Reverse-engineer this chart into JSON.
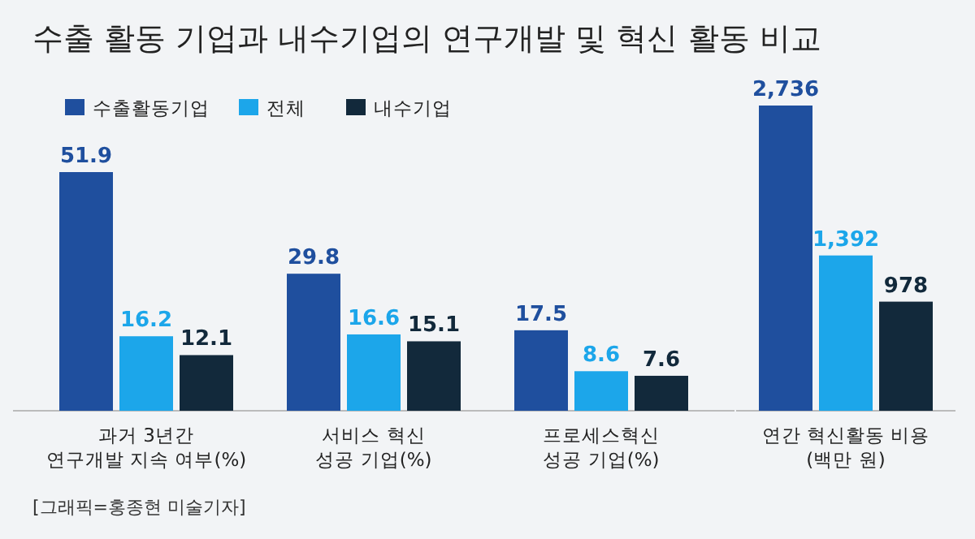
{
  "chart_data": [
    {
      "type": "bar",
      "title": "수출 활동 기업과 내수기업의 연구개발 및 혁신 활동 비교",
      "categories": [
        "과거 3년간\n연구개발 지속 여부(%)",
        "서비스 혁신\n성공 기업(%)",
        "프로세스혁신\n성공 기업(%)"
      ],
      "series": [
        {
          "name": "수출활동기업",
          "color": "#1f4f9e",
          "values": [
            51.9,
            29.8,
            17.5
          ]
        },
        {
          "name": "전체",
          "color": "#1ca6ea",
          "values": [
            16.2,
            16.6,
            8.6
          ]
        },
        {
          "name": "내수기업",
          "color": "#12293b",
          "values": [
            12.1,
            15.1,
            7.6
          ]
        }
      ],
      "data_labels": true,
      "legend": "top left",
      "annotations": [
        "[그래픽=홍종현 미술기자]"
      ]
    },
    {
      "type": "bar",
      "categories": [
        null,
        null,
        null
      ],
      "xlabel": "연간 혁신활동 비용\n(백만 원)",
      "values": [
        2736,
        1392,
        978
      ],
      "colors": [
        "#1f4f9e",
        "#1ca6ea",
        "#12293b"
      ],
      "value_labels": [
        "2,736",
        "1,392",
        "978"
      ]
    }
  ]
}
